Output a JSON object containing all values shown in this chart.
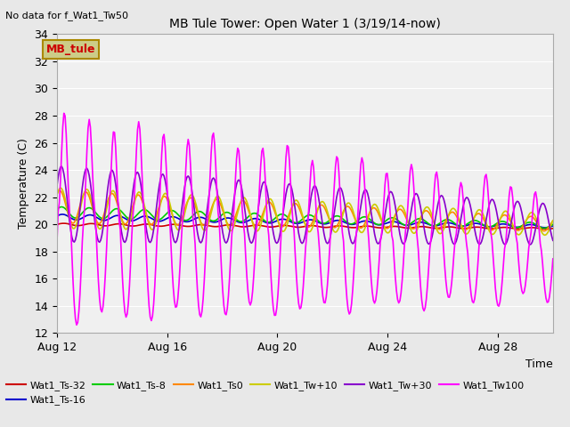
{
  "title": "MB Tule Tower: Open Water 1 (3/19/14-now)",
  "note": "No data for f_Wat1_Tw50",
  "xlabel": "Time",
  "ylabel": "Temperature (C)",
  "ylim": [
    12,
    34
  ],
  "yticks": [
    12,
    14,
    16,
    18,
    20,
    22,
    24,
    26,
    28,
    30,
    32,
    34
  ],
  "xstart": 0,
  "xend": 18,
  "xtick_labels": [
    "Aug 12",
    "Aug 16",
    "Aug 20",
    "Aug 24",
    "Aug 28"
  ],
  "xtick_positions": [
    0,
    4,
    8,
    12,
    16
  ],
  "background_color": "#e8e8e8",
  "plot_bg_color": "#f0f0f0",
  "grid_color": "#ffffff",
  "legend_box_facecolor": "#cccc88",
  "legend_box_edgecolor": "#aa8800",
  "legend_box_text": "MB_tule",
  "legend_box_text_color": "#cc0000",
  "colors": {
    "Wat1_Ts-32": "#cc0000",
    "Wat1_Ts-16": "#0000cc",
    "Wat1_Ts-8": "#00cc00",
    "Wat1_Ts0": "#ff8800",
    "Wat1_Tw+10": "#cccc00",
    "Wat1_Tw+30": "#8800cc",
    "Wat1_Tw100": "#ff00ff"
  }
}
